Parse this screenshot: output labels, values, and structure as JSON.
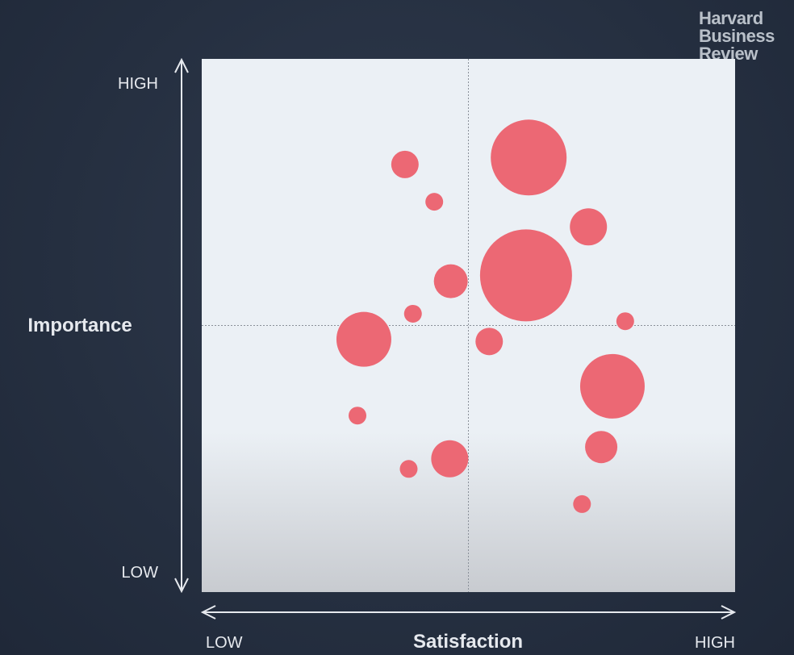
{
  "brand": {
    "line1": "Harvard",
    "line2": "Business",
    "line3": "Review"
  },
  "colors": {
    "bubble": "#ec6874",
    "plot_bg_top": "#ebf0f5",
    "plot_bg_bottom": "#c8cbd0",
    "page_bg": "#252f40"
  },
  "chart_data": {
    "type": "scatter",
    "xlabel": "Satisfaction",
    "ylabel": "Importance",
    "x_tick_labels": {
      "low": "LOW",
      "high": "HIGH"
    },
    "y_tick_labels": {
      "low": "LOW",
      "high": "HIGH"
    },
    "xlim": [
      0,
      100
    ],
    "ylim": [
      0,
      100
    ],
    "quadrant_lines": {
      "x": 50,
      "y": 50
    },
    "points": [
      {
        "x": 38.1,
        "y": 80.2,
        "size": 17
      },
      {
        "x": 43.6,
        "y": 73.2,
        "size": 11
      },
      {
        "x": 61.3,
        "y": 81.5,
        "size": 47
      },
      {
        "x": 72.5,
        "y": 68.5,
        "size": 23
      },
      {
        "x": 46.7,
        "y": 58.3,
        "size": 21
      },
      {
        "x": 60.8,
        "y": 59.4,
        "size": 57
      },
      {
        "x": 39.6,
        "y": 52.2,
        "size": 11
      },
      {
        "x": 30.4,
        "y": 47.4,
        "size": 34
      },
      {
        "x": 53.9,
        "y": 47.0,
        "size": 17
      },
      {
        "x": 79.4,
        "y": 50.8,
        "size": 11
      },
      {
        "x": 77.0,
        "y": 38.6,
        "size": 40
      },
      {
        "x": 29.2,
        "y": 33.1,
        "size": 11
      },
      {
        "x": 74.9,
        "y": 27.2,
        "size": 20
      },
      {
        "x": 46.5,
        "y": 25.0,
        "size": 23
      },
      {
        "x": 38.8,
        "y": 23.1,
        "size": 11
      },
      {
        "x": 71.3,
        "y": 16.5,
        "size": 11
      }
    ]
  }
}
